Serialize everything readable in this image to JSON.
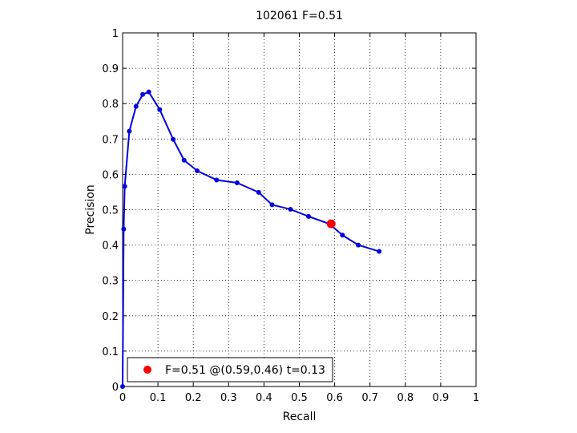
{
  "chart_data": {
    "type": "line",
    "title": "102061 F=0.51",
    "xlabel": "Recall",
    "ylabel": "Precision",
    "xlim": [
      0,
      1
    ],
    "ylim": [
      0,
      1
    ],
    "xticks": [
      "0",
      "0.1",
      "0.2",
      "0.3",
      "0.4",
      "0.5",
      "0.6",
      "0.7",
      "0.8",
      "0.9",
      "1"
    ],
    "yticks": [
      "0",
      "0.1",
      "0.2",
      "0.3",
      "0.4",
      "0.5",
      "0.6",
      "0.7",
      "0.8",
      "0.9",
      "1"
    ],
    "grid": true,
    "legend_position": "bottom-left",
    "series": [
      {
        "color": "#0000e0",
        "x": [
          0.0,
          0.003,
          0.006,
          0.019,
          0.038,
          0.057,
          0.074,
          0.105,
          0.143,
          0.174,
          0.211,
          0.266,
          0.324,
          0.385,
          0.423,
          0.475,
          0.526,
          0.585,
          0.622,
          0.667,
          0.726
        ],
        "y": [
          0.0,
          0.445,
          0.566,
          0.722,
          0.792,
          0.826,
          0.833,
          0.783,
          0.699,
          0.64,
          0.61,
          0.584,
          0.576,
          0.549,
          0.514,
          0.501,
          0.481,
          0.46,
          0.428,
          0.4,
          0.382
        ]
      }
    ],
    "highlight": {
      "label": "F=0.51 @(0.59,0.46) t=0.13",
      "x": 0.59,
      "y": 0.46,
      "color": "#ff0000"
    }
  }
}
